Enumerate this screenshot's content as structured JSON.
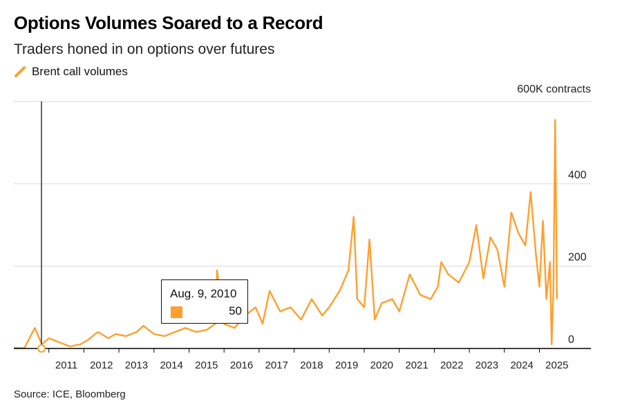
{
  "header": {
    "title": "Options Volumes Soared to a Record",
    "subtitle": "Traders honed in on options over futures"
  },
  "footer": {
    "source": "Source: ICE, Bloomberg"
  },
  "tooltip": {
    "date": "Aug. 9, 2010",
    "value": "50"
  },
  "colors": {
    "series": "#ff9f2e",
    "grid": "#d9d9d9",
    "axis": "#000000",
    "hover_line": "#333333"
  },
  "chart_data": {
    "type": "line",
    "title": "Options Volumes Soared to a Record",
    "subtitle": "Traders honed in on options over futures",
    "unit_label": "600K contracts",
    "y_axis_side": "right",
    "ylim": [
      0,
      600
    ],
    "y_ticks": [
      0,
      200,
      400,
      600
    ],
    "y_tick_labels": [
      "0",
      "200",
      "400",
      ""
    ],
    "xlim": [
      2010.0,
      2025.75
    ],
    "x_tick_labels": [
      "2011",
      "2012",
      "2013",
      "2014",
      "2015",
      "2016",
      "2017",
      "2018",
      "2019",
      "2020",
      "2021",
      "2022",
      "2023",
      "2024",
      "2025"
    ],
    "grid": true,
    "legend": "top-left",
    "series": [
      {
        "name": "Brent call volumes",
        "x": [
          2010.0,
          2010.3,
          2010.6,
          2010.8,
          2011.0,
          2011.3,
          2011.6,
          2011.9,
          2012.1,
          2012.4,
          2012.7,
          2012.9,
          2013.2,
          2013.5,
          2013.7,
          2014.0,
          2014.3,
          2014.6,
          2014.9,
          2015.2,
          2015.5,
          2015.75,
          2015.8,
          2016.0,
          2016.3,
          2016.6,
          2016.9,
          2017.1,
          2017.3,
          2017.6,
          2017.9,
          2018.2,
          2018.5,
          2018.8,
          2019.0,
          2019.3,
          2019.55,
          2019.7,
          2019.8,
          2020.0,
          2020.15,
          2020.3,
          2020.5,
          2020.8,
          2021.0,
          2021.3,
          2021.6,
          2021.9,
          2022.1,
          2022.2,
          2022.4,
          2022.7,
          2023.0,
          2023.2,
          2023.4,
          2023.6,
          2023.8,
          2024.0,
          2024.2,
          2024.4,
          2024.6,
          2024.75,
          2024.9,
          2025.0,
          2025.1,
          2025.2,
          2025.3,
          2025.35,
          2025.4,
          2025.45,
          2025.5
        ],
        "values": [
          2,
          1,
          50,
          10,
          25,
          15,
          5,
          10,
          20,
          40,
          25,
          35,
          30,
          40,
          55,
          35,
          30,
          40,
          50,
          40,
          45,
          60,
          190,
          60,
          50,
          80,
          100,
          60,
          140,
          90,
          100,
          70,
          120,
          80,
          100,
          140,
          190,
          320,
          120,
          100,
          265,
          70,
          110,
          120,
          90,
          180,
          130,
          120,
          150,
          210,
          180,
          160,
          210,
          300,
          170,
          270,
          240,
          150,
          330,
          280,
          250,
          380,
          230,
          150,
          310,
          120,
          210,
          10,
          150,
          555,
          120
        ]
      }
    ]
  }
}
